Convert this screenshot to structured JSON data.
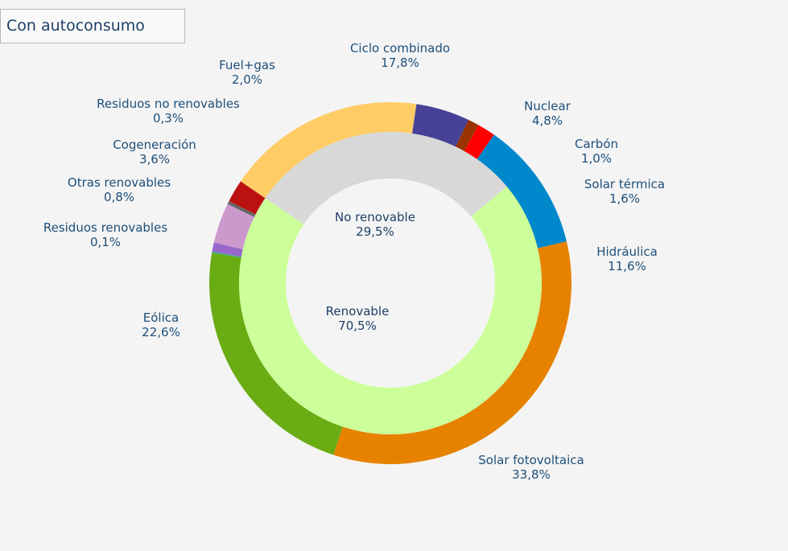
{
  "title": "Con autoconsumo",
  "chart_data": {
    "type": "pie",
    "title": "Con autoconsumo",
    "inner_ring": [
      {
        "label": "No renovable",
        "value": 29.5,
        "value_text": "29,5%",
        "color": "#d8d8d8"
      },
      {
        "label": "Renovable",
        "value": 70.5,
        "value_text": "70,5%",
        "color": "#ccff99"
      }
    ],
    "outer_ring": [
      {
        "label": "Ciclo combinado",
        "value": 17.8,
        "value_text": "17,8%",
        "color": "#ffcc66"
      },
      {
        "label": "Nuclear",
        "value": 4.8,
        "value_text": "4,8%",
        "color": "#464196"
      },
      {
        "label": "Carbón",
        "value": 1.0,
        "value_text": "1,0%",
        "color": "#993300"
      },
      {
        "label": "Solar térmica",
        "value": 1.6,
        "value_text": "1,6%",
        "color": "#ff0000"
      },
      {
        "label": "Hidráulica",
        "value": 11.6,
        "value_text": "11,6%",
        "color": "#0088cc"
      },
      {
        "label": "Solar fotovoltaica",
        "value": 33.8,
        "value_text": "33,8%",
        "color": "#e68200"
      },
      {
        "label": "Eólica",
        "value": 22.6,
        "value_text": "22,6%",
        "color": "#6aac14"
      },
      {
        "label": "Residuos renovables",
        "value": 0.1,
        "value_text": "0,1%",
        "color": "#33aa99"
      },
      {
        "label": "Otras renovables",
        "value": 0.8,
        "value_text": "0,8%",
        "color": "#9966cc"
      },
      {
        "label": "Cogeneración",
        "value": 3.6,
        "value_text": "3,6%",
        "color": "#cc99cc"
      },
      {
        "label": "Residuos no renovables",
        "value": 0.3,
        "value_text": "0,3%",
        "color": "#666666"
      },
      {
        "label": "Fuel+gas",
        "value": 2.0,
        "value_text": "2,0%",
        "color": "#bb1111"
      }
    ]
  }
}
